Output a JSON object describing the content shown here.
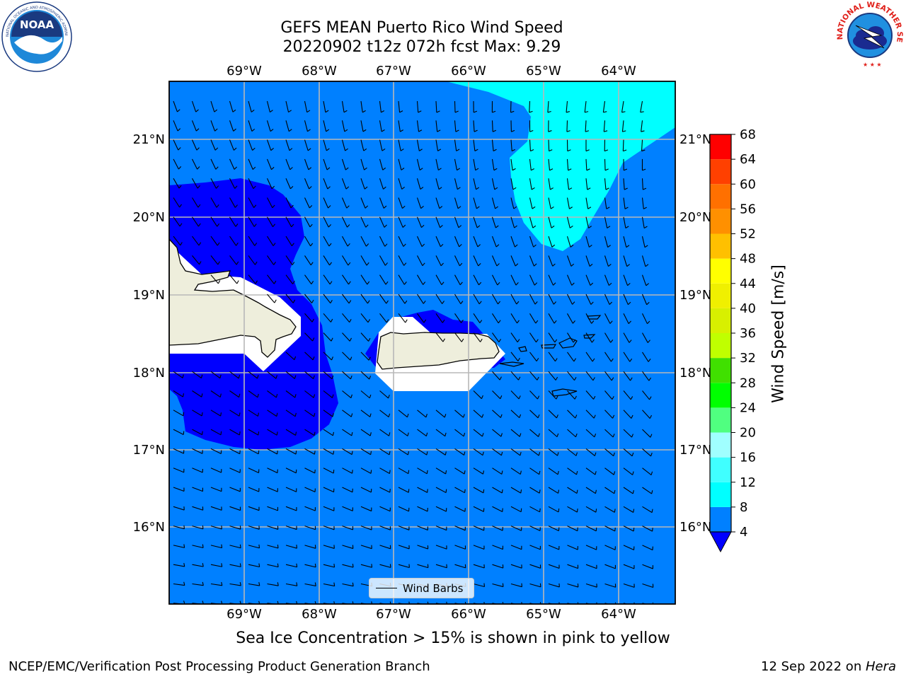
{
  "title": {
    "line1": "GEFS MEAN Puerto Rico Wind Speed",
    "line2": "20220902 t12z 072h fcst   Max: 9.29"
  },
  "logos": {
    "left": "NOAA",
    "left_ring_text": "NATIONAL OCEANIC AND ATMOSPHERIC ADMINISTRATION · U.S. DEPARTMENT OF COMMERCE",
    "right_ring_text": "NATIONAL WEATHER SERVICE"
  },
  "map": {
    "lon_labels": [
      "69°W",
      "68°W",
      "67°W",
      "66°W",
      "65°W",
      "64°W"
    ],
    "lat_labels": [
      "21°N",
      "20°N",
      "19°N",
      "18°N",
      "17°N",
      "16°N"
    ],
    "legend_label": "Wind Barbs",
    "colors": {
      "background_band": "#0080ff",
      "low_band": "#0000ff",
      "high_band": "#00ffff",
      "land": "#eeeedc",
      "masked": "#ffffff"
    }
  },
  "colorbar": {
    "label": "Wind Speed [m/s]",
    "ticks": [
      "68",
      "64",
      "60",
      "56",
      "52",
      "48",
      "44",
      "40",
      "36",
      "32",
      "28",
      "24",
      "20",
      "16",
      "12",
      "8",
      "4"
    ],
    "bands": [
      {
        "from": 4,
        "to": 8,
        "color": "#0080ff"
      },
      {
        "from": 8,
        "to": 12,
        "color": "#00ffff"
      },
      {
        "from": 12,
        "to": 16,
        "color": "#40ffff"
      },
      {
        "from": 16,
        "to": 20,
        "color": "#a0ffff"
      },
      {
        "from": 20,
        "to": 24,
        "color": "#50ff80"
      },
      {
        "from": 24,
        "to": 28,
        "color": "#00ff00"
      },
      {
        "from": 28,
        "to": 32,
        "color": "#40e000"
      },
      {
        "from": 32,
        "to": 36,
        "color": "#c0ff00"
      },
      {
        "from": 36,
        "to": 40,
        "color": "#d8f000"
      },
      {
        "from": 40,
        "to": 44,
        "color": "#f0f000"
      },
      {
        "from": 44,
        "to": 48,
        "color": "#ffff00"
      },
      {
        "from": 48,
        "to": 52,
        "color": "#ffc000"
      },
      {
        "from": 52,
        "to": 56,
        "color": "#ff9000"
      },
      {
        "from": 56,
        "to": 60,
        "color": "#ff7000"
      },
      {
        "from": 60,
        "to": 64,
        "color": "#ff4000"
      },
      {
        "from": 64,
        "to": 68,
        "color": "#ff0000"
      }
    ],
    "under_color": "#0000ff"
  },
  "note": "Sea Ice Concentration > 15% is shown in pink to yellow",
  "footer": {
    "left": "NCEP/EMC/Verification Post Processing Product Generation Branch",
    "right_date": "12 Sep 2022 on ",
    "right_machine": "Hera"
  }
}
